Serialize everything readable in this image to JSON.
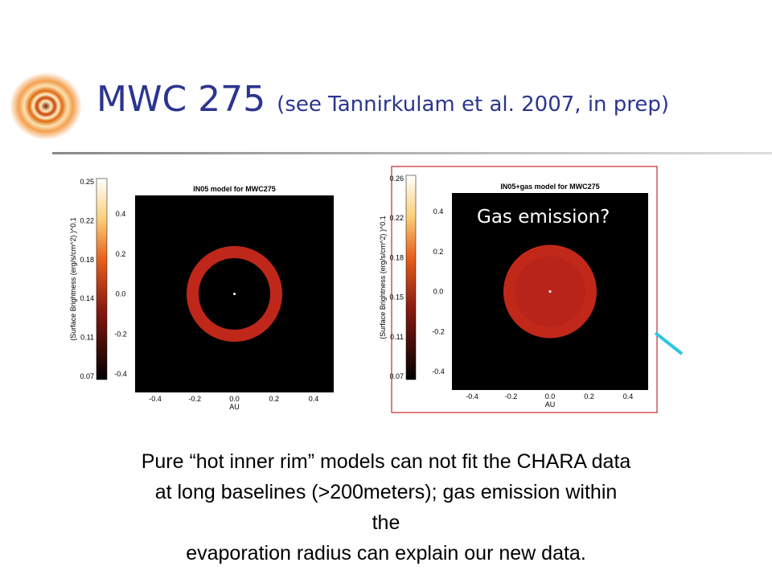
{
  "header": {
    "title": "MWC 275",
    "subtitle": "(see Tannirkulam et al. 2007, in prep)"
  },
  "panels": [
    {
      "title": "IN05 model for MWC275",
      "colorbar_label": "(Surface Brightness (erg/s/cm^2) )^0.1",
      "colorbar_ticks": [
        "0.25",
        "0.22",
        "0.18",
        "0.14",
        "0.11",
        "0.07"
      ],
      "y_ticks": [
        "0.4",
        "0.2",
        "0.0",
        "-0.2",
        "-0.4"
      ],
      "x_ticks": [
        "-0.4",
        "-0.2",
        "0.0",
        "0.2",
        "0.4"
      ],
      "x_label": "AU"
    },
    {
      "title": "IN05+gas model for MWC275",
      "colorbar_label": "(Surface Brightness (erg/s/cm^2) )^0.1",
      "colorbar_ticks": [
        "0.26",
        "0.22",
        "0.18",
        "0.15",
        "0.11",
        "0.07"
      ],
      "y_ticks": [
        "0.4",
        "0.2",
        "0.0",
        "-0.2",
        "-0.4"
      ],
      "x_ticks": [
        "-0.4",
        "-0.2",
        "0.0",
        "0.2",
        "0.4"
      ],
      "x_label": "AU",
      "annotation": "Gas emission?"
    }
  ],
  "caption": [
    "Pure “hot inner rim” models can not fit the CHARA data",
    "at long baselines (>200meters); gas emission within",
    "the",
    "evaporation radius can explain our new data."
  ]
}
